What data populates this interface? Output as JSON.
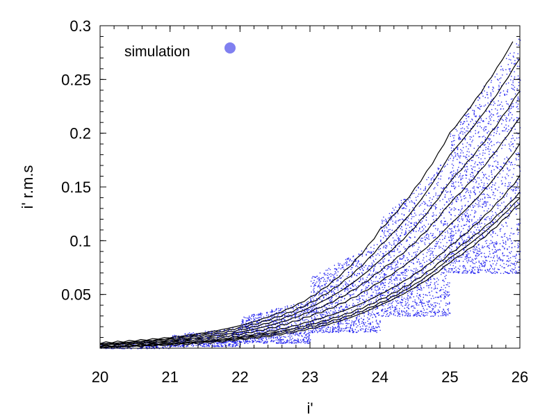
{
  "chart_data": {
    "type": "scatter",
    "title": "",
    "xlabel": "i'",
    "ylabel": "i' r.m.s",
    "xlim": [
      20,
      26
    ],
    "ylim": [
      0,
      0.3
    ],
    "x_ticks": [
      20,
      21,
      22,
      23,
      24,
      25,
      26
    ],
    "x_tick_labels": [
      "20",
      "21",
      "22",
      "23",
      "24",
      "25",
      "26"
    ],
    "y_ticks": [
      0.05,
      0.1,
      0.15,
      0.2,
      0.25,
      0.3
    ],
    "y_tick_labels": [
      "0.05",
      "0.1",
      "0.15",
      "0.2",
      "0.25",
      "0.3"
    ],
    "x_minor_step": 0.2,
    "y_minor_step": 0.01,
    "grid": false,
    "legend": {
      "label": "simulation",
      "placement": "top-left",
      "marker_color": "#8080f0"
    },
    "points_color": "#2a2af0",
    "contour_color": "#000000",
    "scatter_density": [
      {
        "x_range": [
          20.0,
          21.0
        ],
        "y_range": [
          0.0,
          0.008
        ]
      },
      {
        "x_range": [
          21.0,
          22.0
        ],
        "y_range": [
          0.002,
          0.02
        ]
      },
      {
        "x_range": [
          22.0,
          23.0
        ],
        "y_range": [
          0.005,
          0.045
        ]
      },
      {
        "x_range": [
          23.0,
          24.0
        ],
        "y_range": [
          0.015,
          0.1
        ]
      },
      {
        "x_range": [
          24.0,
          25.0
        ],
        "y_range": [
          0.03,
          0.18
        ]
      },
      {
        "x_range": [
          25.0,
          26.0
        ],
        "y_range": [
          0.07,
          0.29
        ]
      }
    ],
    "contours": [
      {
        "level": 1,
        "points": [
          [
            20.0,
            0.001
          ],
          [
            21.0,
            0.003
          ],
          [
            22.0,
            0.008
          ],
          [
            23.0,
            0.018
          ],
          [
            24.0,
            0.04
          ],
          [
            25.0,
            0.08
          ],
          [
            26.0,
            0.135
          ]
        ]
      },
      {
        "level": 2,
        "points": [
          [
            20.0,
            0.001
          ],
          [
            21.0,
            0.004
          ],
          [
            22.0,
            0.009
          ],
          [
            23.0,
            0.02
          ],
          [
            24.0,
            0.042
          ],
          [
            25.0,
            0.084
          ],
          [
            26.0,
            0.14
          ]
        ]
      },
      {
        "level": 3,
        "points": [
          [
            20.0,
            0.002
          ],
          [
            21.0,
            0.004
          ],
          [
            22.0,
            0.01
          ],
          [
            23.0,
            0.022
          ],
          [
            24.0,
            0.045
          ],
          [
            25.0,
            0.088
          ],
          [
            26.0,
            0.145
          ]
        ]
      },
      {
        "level": 4,
        "points": [
          [
            20.0,
            0.002
          ],
          [
            21.0,
            0.005
          ],
          [
            22.0,
            0.011
          ],
          [
            23.0,
            0.025
          ],
          [
            24.0,
            0.05
          ],
          [
            25.0,
            0.095
          ],
          [
            26.0,
            0.16
          ]
        ]
      },
      {
        "level": 5,
        "points": [
          [
            20.0,
            0.003
          ],
          [
            21.0,
            0.006
          ],
          [
            22.0,
            0.013
          ],
          [
            23.0,
            0.03
          ],
          [
            24.0,
            0.062
          ],
          [
            25.0,
            0.115
          ],
          [
            26.0,
            0.19
          ]
        ]
      },
      {
        "level": 6,
        "points": [
          [
            20.0,
            0.003
          ],
          [
            21.0,
            0.007
          ],
          [
            22.0,
            0.015
          ],
          [
            23.0,
            0.034
          ],
          [
            24.0,
            0.072
          ],
          [
            25.0,
            0.135
          ],
          [
            26.0,
            0.215
          ]
        ]
      },
      {
        "level": 7,
        "points": [
          [
            20.0,
            0.004
          ],
          [
            21.0,
            0.008
          ],
          [
            22.0,
            0.017
          ],
          [
            23.0,
            0.038
          ],
          [
            24.0,
            0.082
          ],
          [
            25.0,
            0.155
          ],
          [
            26.0,
            0.24
          ]
        ]
      },
      {
        "level": 8,
        "points": [
          [
            20.0,
            0.004
          ],
          [
            21.0,
            0.009
          ],
          [
            22.0,
            0.019
          ],
          [
            23.0,
            0.042
          ],
          [
            24.0,
            0.095
          ],
          [
            25.0,
            0.18
          ],
          [
            26.0,
            0.27
          ]
        ]
      },
      {
        "level": 9,
        "points": [
          [
            20.0,
            0.005
          ],
          [
            21.0,
            0.01
          ],
          [
            22.0,
            0.021
          ],
          [
            23.0,
            0.047
          ],
          [
            24.0,
            0.11
          ],
          [
            25.0,
            0.2
          ],
          [
            25.9,
            0.285
          ]
        ]
      }
    ]
  }
}
